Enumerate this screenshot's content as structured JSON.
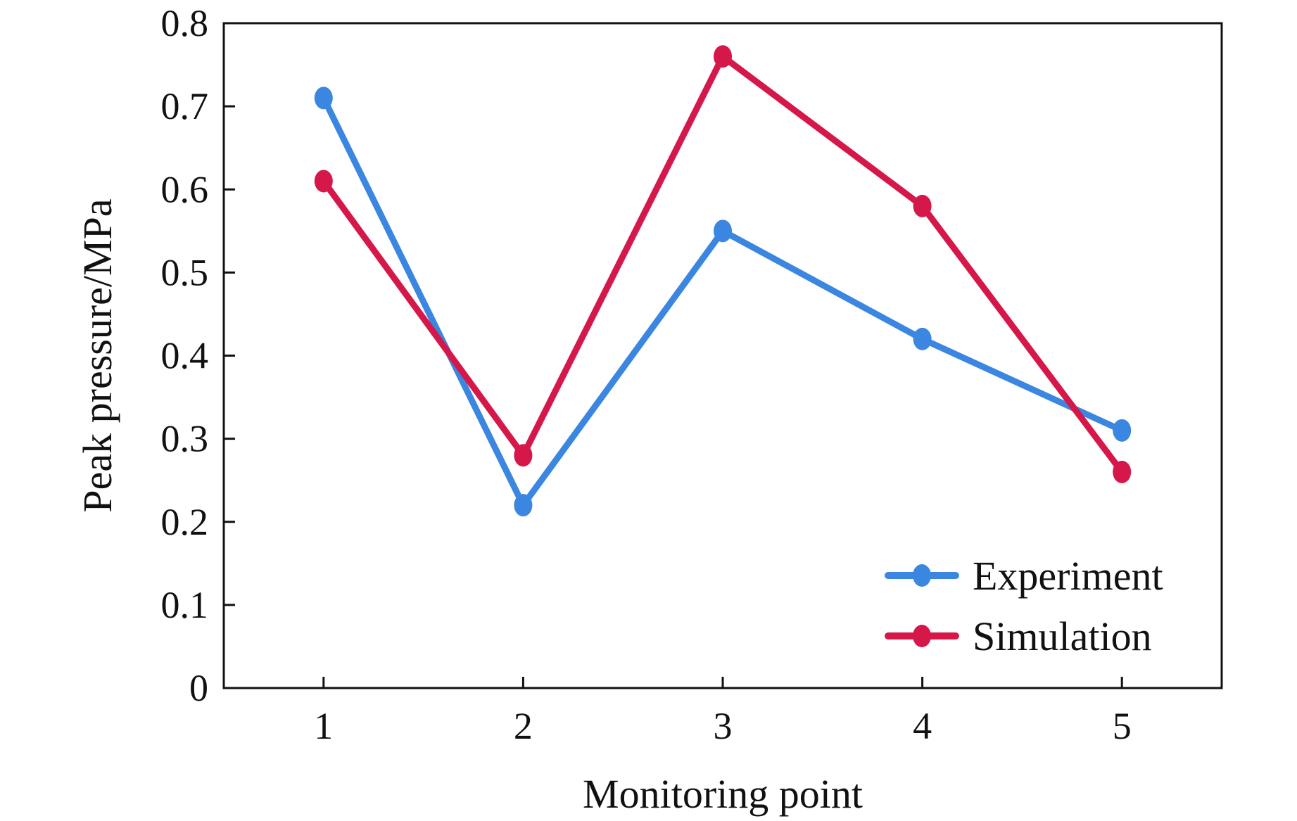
{
  "chart_data": {
    "type": "line",
    "title": "",
    "xlabel": "Monitoring point",
    "ylabel": "Peak pressure/MPa",
    "categories": [
      "1",
      "2",
      "3",
      "4",
      "5"
    ],
    "x": [
      1,
      2,
      3,
      4,
      5
    ],
    "xlim": [
      0.5,
      5.5
    ],
    "ylim": [
      0,
      0.8
    ],
    "yticks": [
      0,
      0.1,
      0.2,
      0.3,
      0.4,
      0.5,
      0.6,
      0.7,
      0.8
    ],
    "ytick_labels": [
      "0",
      "0.1",
      "0.2",
      "0.3",
      "0.4",
      "0.5",
      "0.6",
      "0.7",
      "0.8"
    ],
    "grid": false,
    "legend_position": "bottom-right",
    "series": [
      {
        "name": "Experiment",
        "color": "#3a86e0",
        "values": [
          0.71,
          0.22,
          0.55,
          0.42,
          0.31
        ]
      },
      {
        "name": "Simulation",
        "color": "#d5174a",
        "values": [
          0.61,
          0.28,
          0.76,
          0.58,
          0.26
        ]
      }
    ]
  }
}
